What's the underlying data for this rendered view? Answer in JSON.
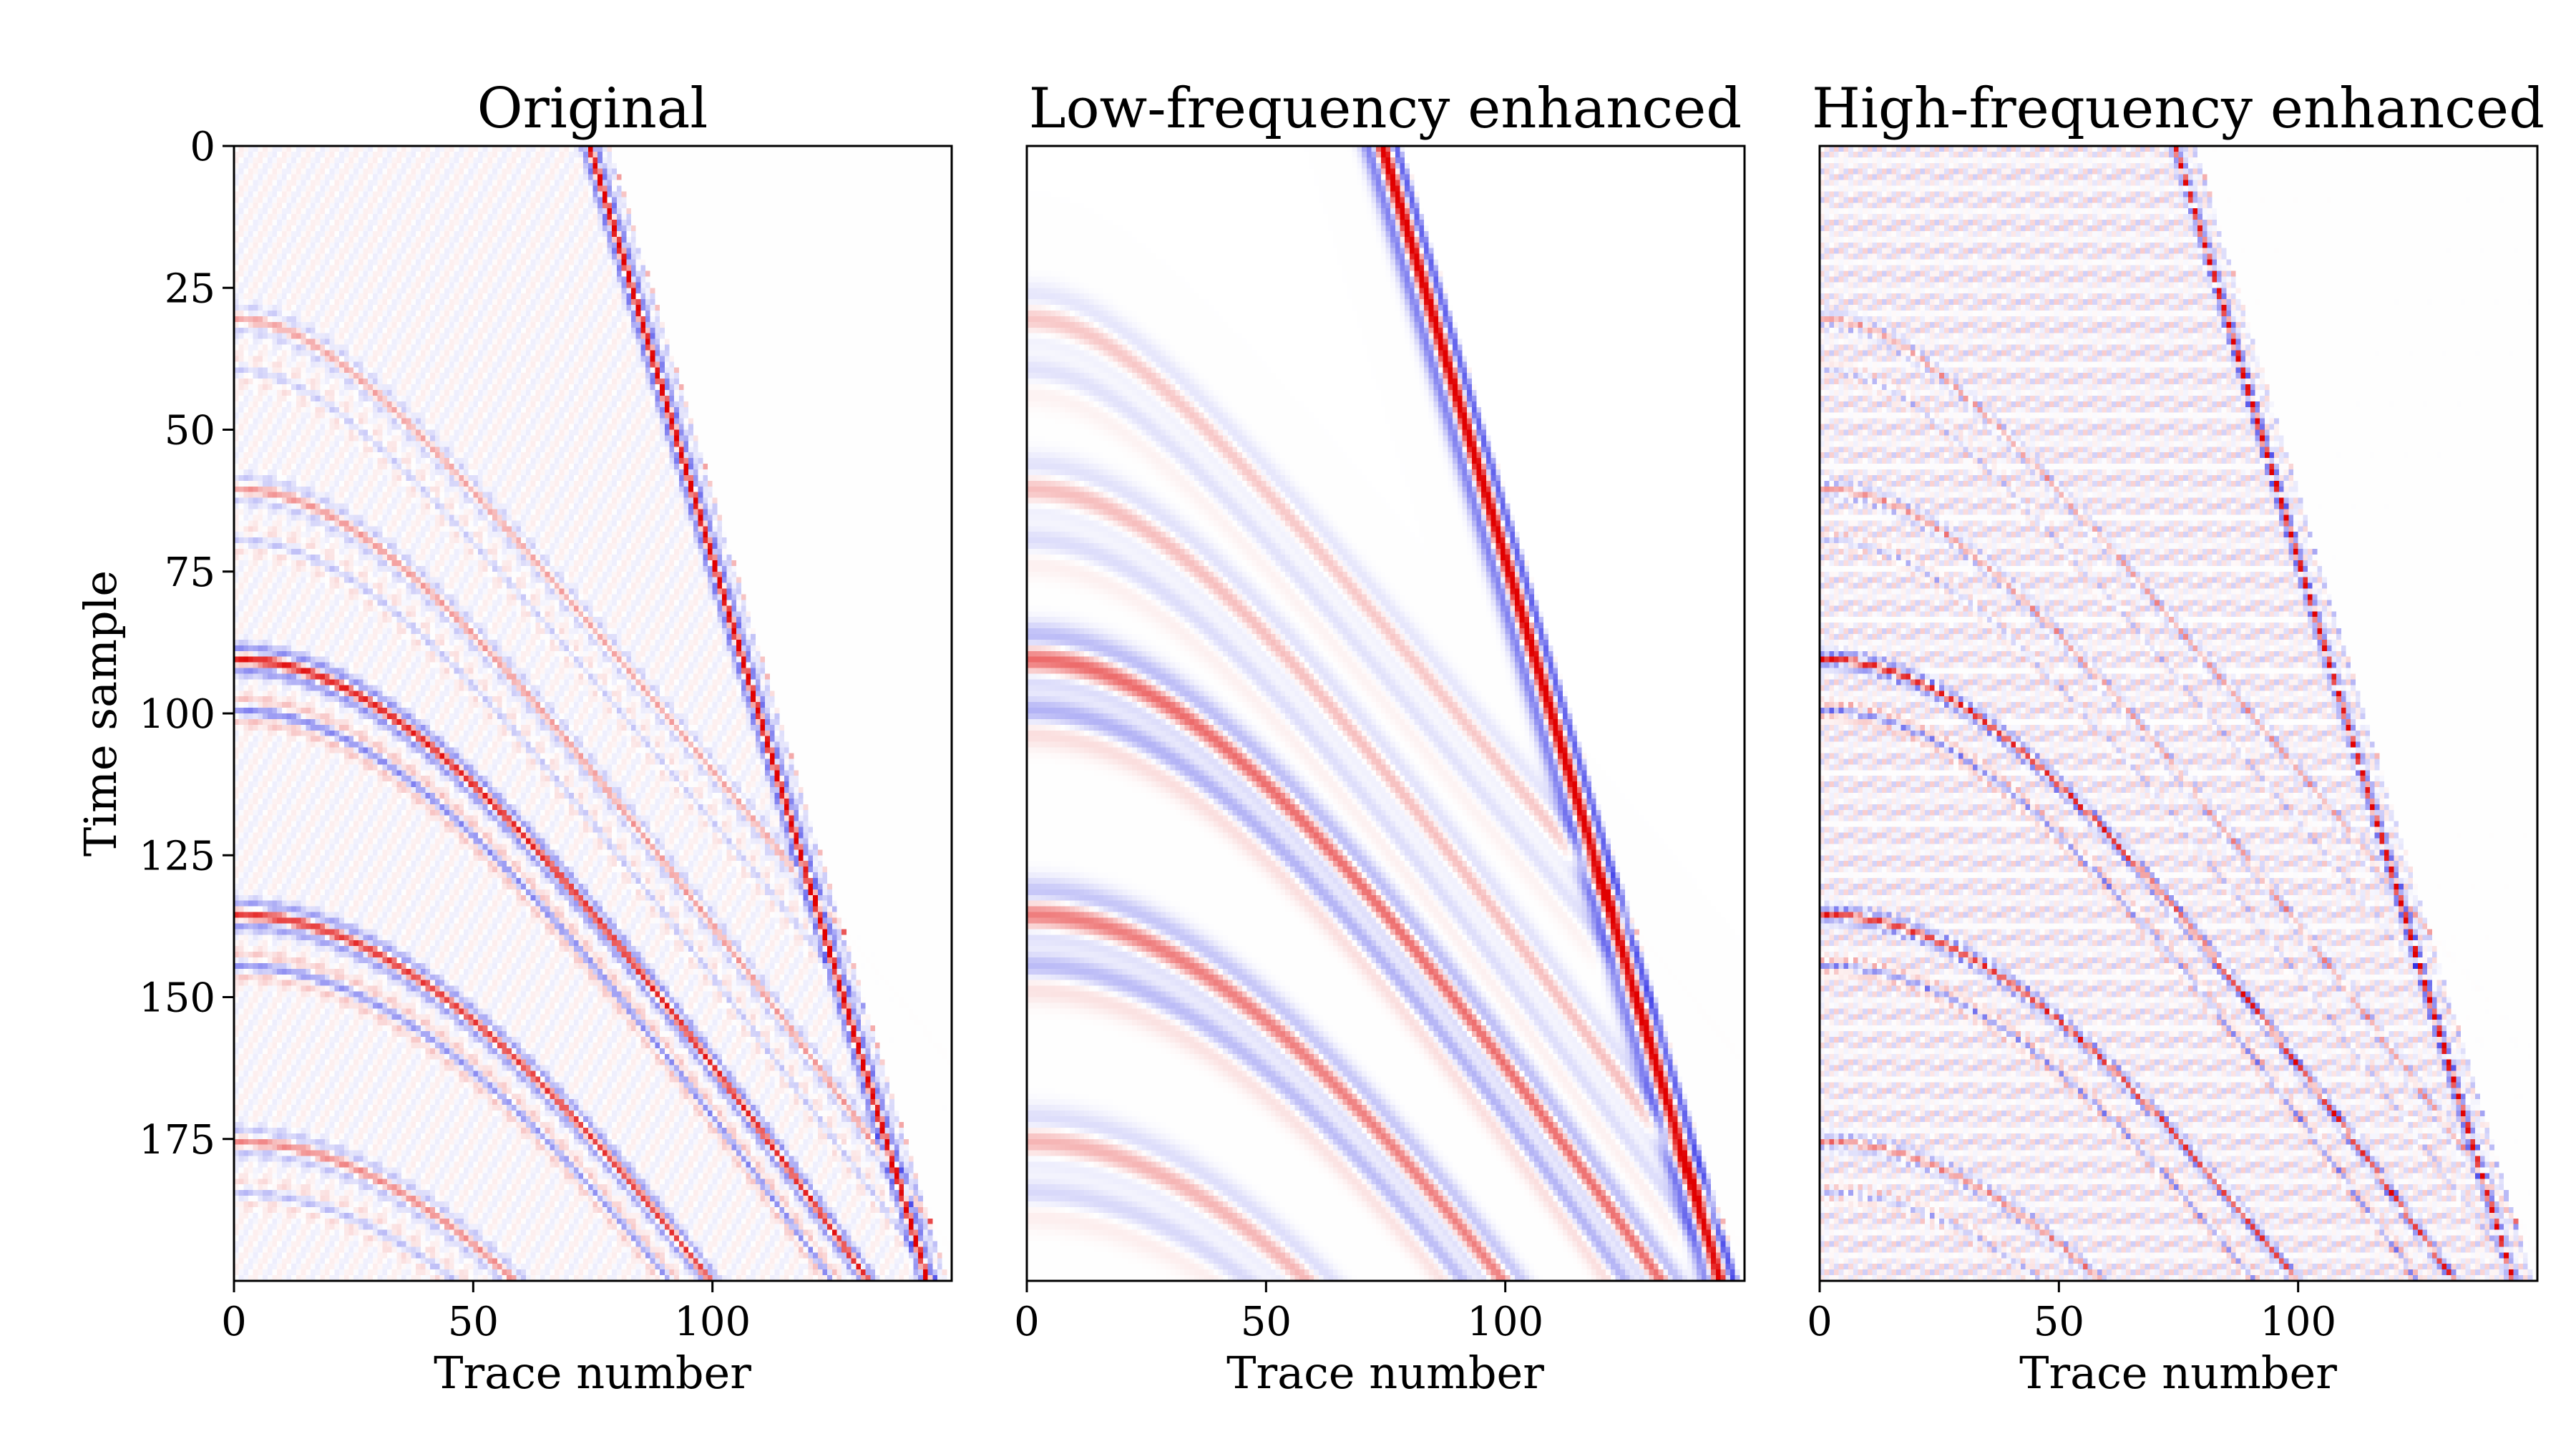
{
  "chart_data": [
    {
      "type": "heatmap",
      "title": "Original",
      "xlabel": "Trace number",
      "ylabel": "Time sample",
      "xlim": [
        0,
        150
      ],
      "ylim": [
        200,
        0
      ],
      "xticks": [
        "0",
        "50",
        "100"
      ],
      "yticks": [
        "0",
        "25",
        "50",
        "75",
        "100",
        "125",
        "150",
        "175"
      ],
      "colormap": "seismic (blue = negative, white = zero, red = positive)",
      "events": [
        {
          "kind": "linear",
          "t_at_trace0": -210,
          "slope": 2.83,
          "amplitude": 1.0
        },
        {
          "kind": "hyperbolic",
          "t0": 90,
          "velocity": 0.55,
          "amplitude": 0.8
        },
        {
          "kind": "hyperbolic",
          "t0": 135,
          "velocity": 0.5,
          "amplitude": 0.7
        }
      ]
    },
    {
      "type": "heatmap",
      "title": "Low-frequency enhanced",
      "xlabel": "Trace number",
      "ylabel": "",
      "xlim": [
        0,
        150
      ],
      "ylim": [
        200,
        0
      ],
      "xticks": [
        "0",
        "50",
        "100"
      ],
      "yticks": [],
      "colormap": "seismic (blue = negative, white = zero, red = positive)",
      "events": [
        {
          "kind": "linear",
          "t_at_trace0": -210,
          "slope": 2.83,
          "amplitude": 1.0
        },
        {
          "kind": "hyperbolic",
          "t0": 90,
          "velocity": 0.55,
          "amplitude": 0.6
        },
        {
          "kind": "hyperbolic",
          "t0": 135,
          "velocity": 0.5,
          "amplitude": 0.5
        }
      ]
    },
    {
      "type": "heatmap",
      "title": "High-frequency enhanced",
      "xlabel": "Trace number",
      "ylabel": "",
      "xlim": [
        0,
        150
      ],
      "ylim": [
        200,
        0
      ],
      "xticks": [
        "0",
        "50",
        "100"
      ],
      "yticks": [],
      "colormap": "seismic (blue = negative, white = zero, red = positive)",
      "events": [
        {
          "kind": "linear",
          "t_at_trace0": -210,
          "slope": 2.83,
          "amplitude": 1.0
        },
        {
          "kind": "hyperbolic",
          "t0": 90,
          "velocity": 0.55,
          "amplitude": 0.8
        },
        {
          "kind": "hyperbolic",
          "t0": 135,
          "velocity": 0.5,
          "amplitude": 0.8
        }
      ]
    }
  ],
  "colors": {
    "positive": "#dd0000",
    "negative": "#0000dd",
    "zero": "#ffffff"
  }
}
